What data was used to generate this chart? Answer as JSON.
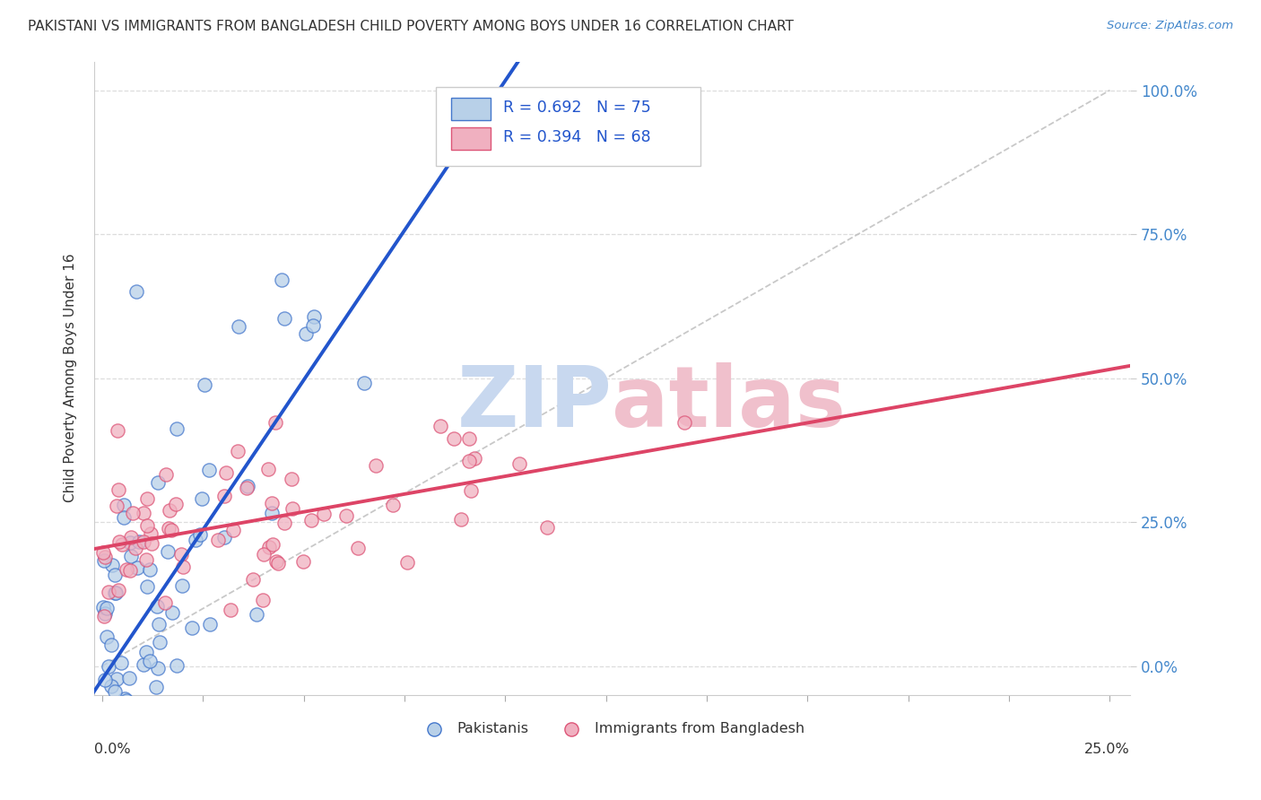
{
  "title": "PAKISTANI VS IMMIGRANTS FROM BANGLADESH CHILD POVERTY AMONG BOYS UNDER 16 CORRELATION CHART",
  "source": "Source: ZipAtlas.com",
  "ylabel": "Child Poverty Among Boys Under 16",
  "ytick_labels": [
    "0.0%",
    "25.0%",
    "50.0%",
    "75.0%",
    "100.0%"
  ],
  "ytick_vals": [
    0.0,
    0.25,
    0.5,
    0.75,
    1.0
  ],
  "xlim": [
    -0.002,
    0.255
  ],
  "ylim": [
    -0.05,
    1.05
  ],
  "r1": 0.692,
  "n1": 75,
  "r2": 0.394,
  "n2": 68,
  "color_blue_fill": "#b8d0e8",
  "color_blue_edge": "#4477cc",
  "color_pink_fill": "#f0b0c0",
  "color_pink_edge": "#dd5577",
  "line_blue": "#2255cc",
  "line_pink": "#dd4466",
  "diag_color": "#bbbbbb",
  "background": "#ffffff",
  "grid_color": "#dddddd",
  "legend_label1": "Pakistanis",
  "legend_label2": "Immigrants from Bangladesh",
  "watermark_zip_color": "#c8d8ef",
  "watermark_atlas_color": "#f0c0cc",
  "title_color": "#333333",
  "source_color": "#4488cc",
  "axis_label_color": "#333333",
  "right_tick_color": "#4488cc",
  "bottom_label_color": "#333333"
}
